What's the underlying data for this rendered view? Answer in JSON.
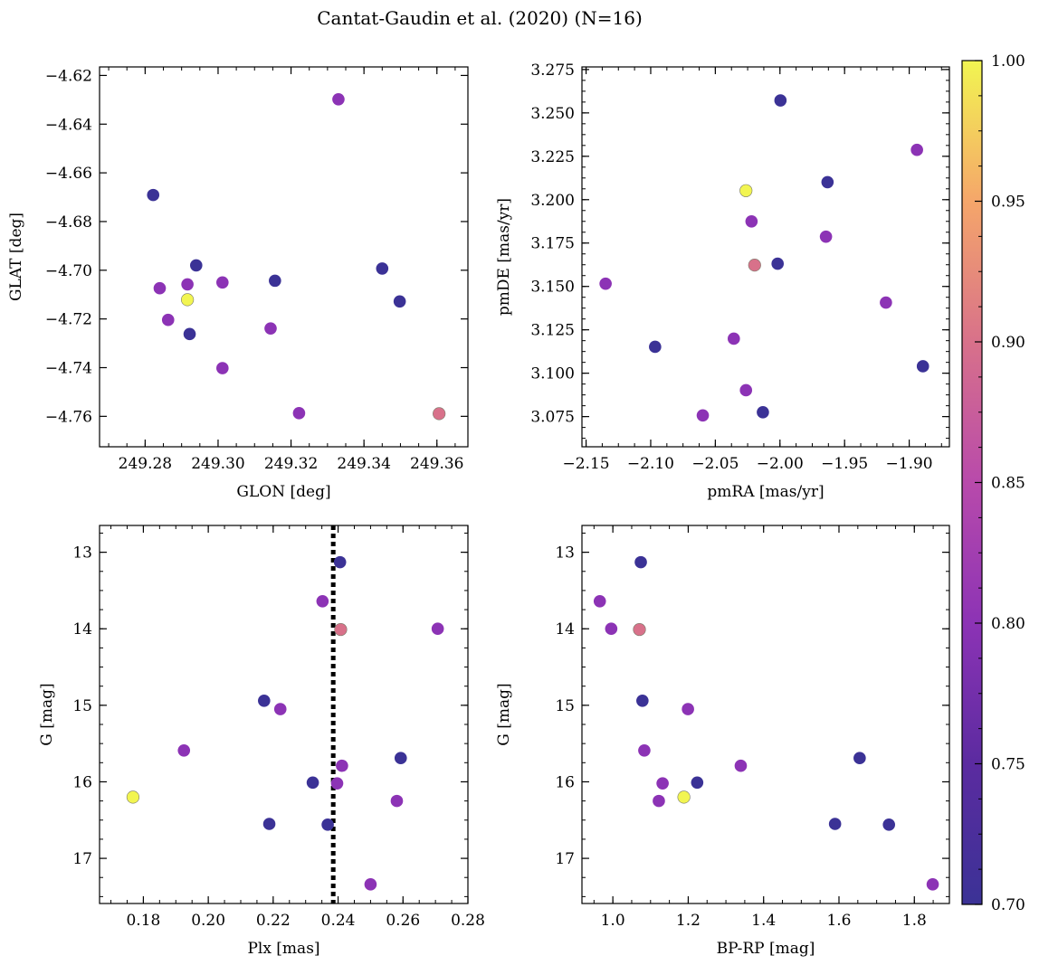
{
  "figure_title": "Cantat-Gaudin et al. (2020) (N=16)",
  "colormap": {
    "name": "plasma",
    "range": [
      0.7,
      1.0
    ],
    "ticks": [
      "0.70",
      "0.75",
      "0.80",
      "0.85",
      "0.90",
      "0.95",
      "1.00"
    ],
    "tick_values": [
      0.7,
      0.75,
      0.8,
      0.85,
      0.9,
      0.95,
      1.0
    ],
    "stops": [
      "#3b3296",
      "#5b2ba0",
      "#8c33b5",
      "#b84aab",
      "#d8718a",
      "#f5a66a",
      "#f2f551"
    ]
  },
  "chart_data": [
    {
      "type": "scatter",
      "xlabel": "GLON [deg]",
      "ylabel": "GLAT [deg]",
      "xlim": [
        249.2675,
        249.3685
      ],
      "ylim": [
        -4.7725,
        -4.6165
      ],
      "xticks": [
        249.28,
        249.3,
        249.32,
        249.34,
        249.36
      ],
      "xtick_labels": [
        "249.28",
        "249.30",
        "249.32",
        "249.34",
        "249.36"
      ],
      "yticks": [
        -4.62,
        -4.64,
        -4.66,
        -4.68,
        -4.7,
        -4.72,
        -4.74,
        -4.76
      ],
      "ytick_labels": [
        "−4.62",
        "−4.64",
        "−4.66",
        "−4.68",
        "−4.70",
        "−4.72",
        "−4.74",
        "−4.76"
      ],
      "points": [
        {
          "x": 249.2822,
          "y": -4.6691,
          "c": 0.7
        },
        {
          "x": 249.284,
          "y": -4.7074,
          "c": 0.8
        },
        {
          "x": 249.2863,
          "y": -4.7204,
          "c": 0.8
        },
        {
          "x": 249.2916,
          "y": -4.7121,
          "c": 1.0
        },
        {
          "x": 249.2916,
          "y": -4.7058,
          "c": 0.8
        },
        {
          "x": 249.2922,
          "y": -4.7262,
          "c": 0.7
        },
        {
          "x": 249.294,
          "y": -4.698,
          "c": 0.7
        },
        {
          "x": 249.3012,
          "y": -4.705,
          "c": 0.8
        },
        {
          "x": 249.3012,
          "y": -4.7402,
          "c": 0.8
        },
        {
          "x": 249.3144,
          "y": -4.7239,
          "c": 0.8
        },
        {
          "x": 249.3156,
          "y": -4.7043,
          "c": 0.7
        },
        {
          "x": 249.3222,
          "y": -4.7587,
          "c": 0.8
        },
        {
          "x": 249.333,
          "y": -4.6298,
          "c": 0.8
        },
        {
          "x": 249.345,
          "y": -4.6993,
          "c": 0.7
        },
        {
          "x": 249.3498,
          "y": -4.7128,
          "c": 0.7
        },
        {
          "x": 249.3606,
          "y": -4.7589,
          "c": 0.9
        }
      ]
    },
    {
      "type": "scatter",
      "xlabel": "pmRA [mas/yr]",
      "ylabel": "pmDE [mas/yr]",
      "xlim": [
        -2.1532,
        -1.8689
      ],
      "ylim": [
        3.0576,
        3.2765
      ],
      "xticks": [
        -2.15,
        -2.1,
        -2.05,
        -2.0,
        -1.95,
        -1.9
      ],
      "xtick_labels": [
        "−2.15",
        "−2.10",
        "−2.05",
        "−2.00",
        "−1.95",
        "−1.90"
      ],
      "yticks": [
        3.075,
        3.1,
        3.125,
        3.15,
        3.175,
        3.2,
        3.225,
        3.25,
        3.275
      ],
      "ytick_labels": [
        "3.075",
        "3.100",
        "3.125",
        "3.150",
        "3.175",
        "3.200",
        "3.225",
        "3.250",
        "3.275"
      ],
      "points": [
        {
          "x": -2.1349,
          "y": 3.1516,
          "c": 0.8
        },
        {
          "x": -2.0966,
          "y": 3.1152,
          "c": 0.7
        },
        {
          "x": -2.0597,
          "y": 3.0757,
          "c": 0.8
        },
        {
          "x": -2.0357,
          "y": 3.1199,
          "c": 0.8
        },
        {
          "x": -2.0263,
          "y": 3.0902,
          "c": 0.8
        },
        {
          "x": -2.0263,
          "y": 3.2052,
          "c": 1.0
        },
        {
          "x": -2.022,
          "y": 3.1875,
          "c": 0.8
        },
        {
          "x": -2.0196,
          "y": 3.1623,
          "c": 0.9
        },
        {
          "x": -2.0132,
          "y": 3.0775,
          "c": 0.7
        },
        {
          "x": -2.0018,
          "y": 3.1631,
          "c": 0.7
        },
        {
          "x": -1.9996,
          "y": 3.2572,
          "c": 0.7
        },
        {
          "x": -1.9644,
          "y": 3.1787,
          "c": 0.8
        },
        {
          "x": -1.9632,
          "y": 3.2101,
          "c": 0.7
        },
        {
          "x": -1.918,
          "y": 3.1407,
          "c": 0.8
        },
        {
          "x": -1.894,
          "y": 3.2287,
          "c": 0.8
        },
        {
          "x": -1.8894,
          "y": 3.104,
          "c": 0.7
        }
      ]
    },
    {
      "type": "scatter",
      "xlabel": "Plx [mas]",
      "ylabel": "G [mag]",
      "xlim": [
        0.1665,
        0.28
      ],
      "ylim": [
        17.59,
        12.65
      ],
      "y_inverted": true,
      "vline": {
        "x": 0.2385,
        "style": "dotted"
      },
      "xticks": [
        0.18,
        0.2,
        0.22,
        0.24,
        0.26,
        0.28
      ],
      "xtick_labels": [
        "0.18",
        "0.20",
        "0.22",
        "0.24",
        "0.26",
        "0.28"
      ],
      "yticks": [
        13,
        14,
        15,
        16,
        17
      ],
      "ytick_labels": [
        "13",
        "14",
        "15",
        "16",
        "17"
      ],
      "points": [
        {
          "x": 0.1768,
          "y": 16.2,
          "c": 1.0
        },
        {
          "x": 0.1925,
          "y": 15.59,
          "c": 0.8
        },
        {
          "x": 0.2172,
          "y": 14.94,
          "c": 0.7
        },
        {
          "x": 0.2188,
          "y": 16.55,
          "c": 0.7
        },
        {
          "x": 0.2222,
          "y": 15.05,
          "c": 0.8
        },
        {
          "x": 0.2322,
          "y": 16.01,
          "c": 0.7
        },
        {
          "x": 0.2352,
          "y": 13.64,
          "c": 0.8
        },
        {
          "x": 0.2368,
          "y": 16.56,
          "c": 0.7
        },
        {
          "x": 0.2397,
          "y": 16.02,
          "c": 0.8
        },
        {
          "x": 0.2406,
          "y": 13.13,
          "c": 0.7
        },
        {
          "x": 0.2408,
          "y": 14.01,
          "c": 0.9
        },
        {
          "x": 0.2412,
          "y": 15.79,
          "c": 0.8
        },
        {
          "x": 0.25,
          "y": 17.34,
          "c": 0.8
        },
        {
          "x": 0.2581,
          "y": 16.25,
          "c": 0.8
        },
        {
          "x": 0.2593,
          "y": 15.69,
          "c": 0.7
        },
        {
          "x": 0.2707,
          "y": 14.0,
          "c": 0.8
        }
      ]
    },
    {
      "type": "scatter",
      "xlabel": "BP-RP [mag]",
      "ylabel": "G [mag]",
      "xlim": [
        0.918,
        1.893
      ],
      "ylim": [
        17.59,
        12.65
      ],
      "y_inverted": true,
      "xticks": [
        1.0,
        1.2,
        1.4,
        1.6,
        1.8
      ],
      "xtick_labels": [
        "1.0",
        "1.2",
        "1.4",
        "1.6",
        "1.8"
      ],
      "yticks": [
        13,
        14,
        15,
        16,
        17
      ],
      "ytick_labels": [
        "13",
        "14",
        "15",
        "16",
        "17"
      ],
      "points": [
        {
          "x": 0.9654,
          "y": 13.64,
          "c": 0.8
        },
        {
          "x": 0.9957,
          "y": 14.0,
          "c": 0.8
        },
        {
          "x": 1.0705,
          "y": 14.01,
          "c": 0.9
        },
        {
          "x": 1.0742,
          "y": 13.13,
          "c": 0.7
        },
        {
          "x": 1.0785,
          "y": 14.94,
          "c": 0.7
        },
        {
          "x": 1.0835,
          "y": 15.59,
          "c": 0.8
        },
        {
          "x": 1.122,
          "y": 16.25,
          "c": 0.8
        },
        {
          "x": 1.132,
          "y": 16.02,
          "c": 0.8
        },
        {
          "x": 1.1885,
          "y": 16.2,
          "c": 1.0
        },
        {
          "x": 1.1993,
          "y": 15.05,
          "c": 0.8
        },
        {
          "x": 1.2238,
          "y": 16.01,
          "c": 0.7
        },
        {
          "x": 1.3394,
          "y": 15.79,
          "c": 0.8
        },
        {
          "x": 1.5896,
          "y": 16.55,
          "c": 0.7
        },
        {
          "x": 1.6549,
          "y": 15.69,
          "c": 0.7
        },
        {
          "x": 1.7326,
          "y": 16.56,
          "c": 0.7
        },
        {
          "x": 1.8487,
          "y": 17.34,
          "c": 0.8
        }
      ]
    }
  ]
}
